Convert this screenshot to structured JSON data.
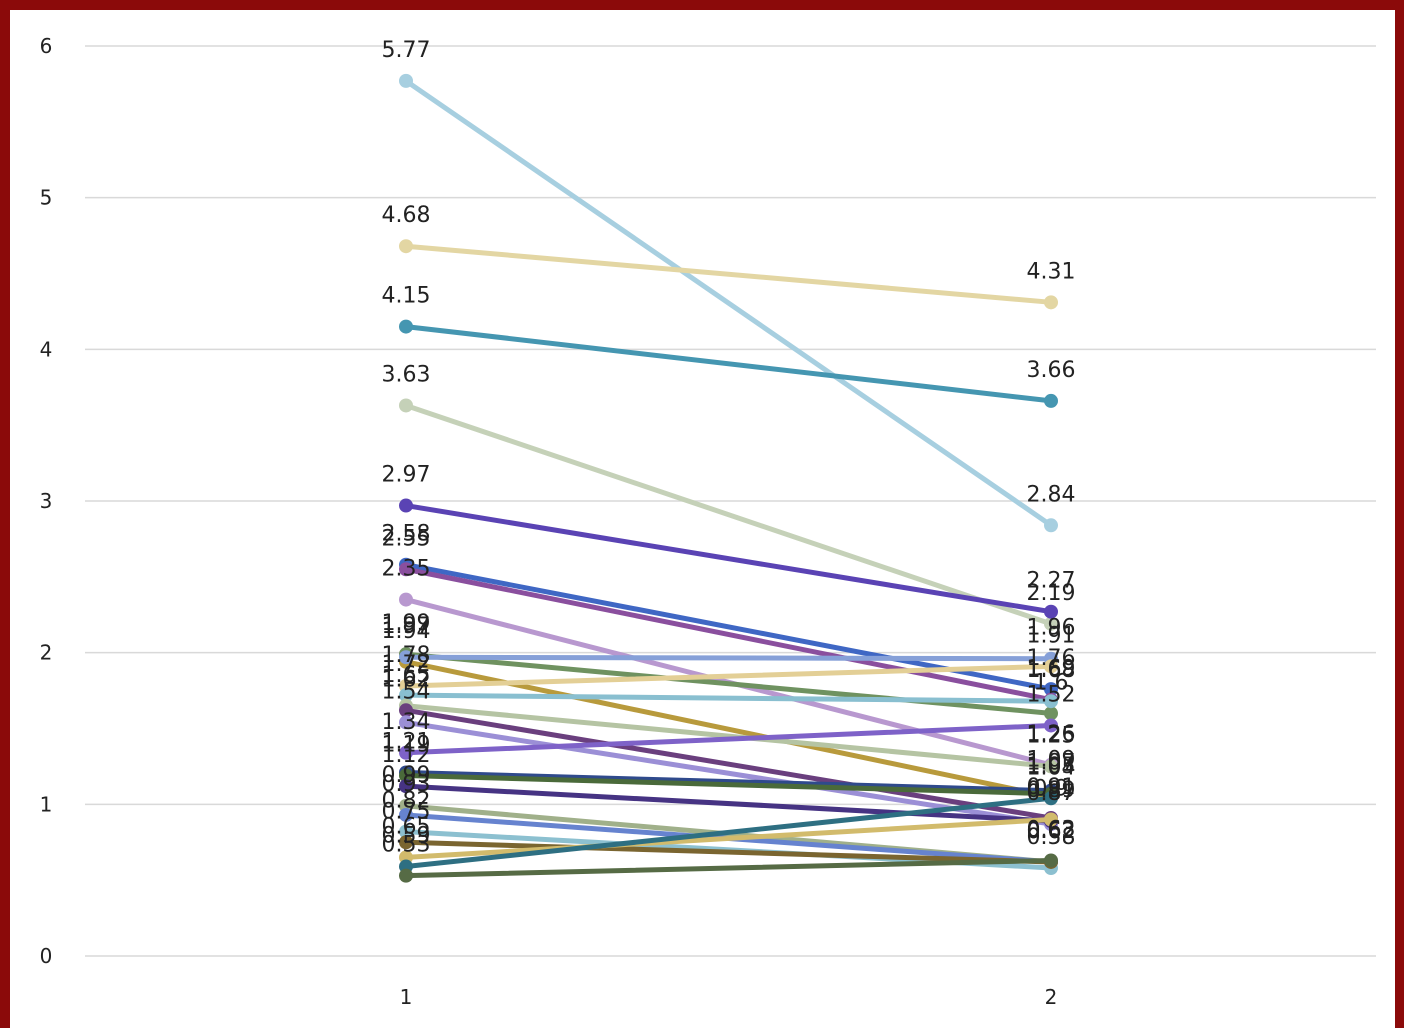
{
  "chart_data": {
    "type": "line",
    "title": "",
    "xlabel": "",
    "ylabel": "",
    "categories": [
      "1",
      "2"
    ],
    "ylim": [
      0,
      6
    ],
    "yticks": [
      "0",
      "1",
      "2",
      "3",
      "4",
      "5",
      "6"
    ],
    "grid": true,
    "legend": "none",
    "series": [
      {
        "values": [
          5.77,
          2.84
        ],
        "color": "#a7cfe0"
      },
      {
        "values": [
          4.68,
          4.31
        ],
        "color": "#e3d6a3"
      },
      {
        "values": [
          4.15,
          3.66
        ],
        "color": "#4596b1"
      },
      {
        "values": [
          3.63,
          2.19
        ],
        "color": "#c5d1b8"
      },
      {
        "values": [
          2.97,
          2.27
        ],
        "color": "#5a43b4"
      },
      {
        "values": [
          2.58,
          1.76
        ],
        "color": "#3f67c4"
      },
      {
        "values": [
          2.55,
          1.69
        ],
        "color": "#8a4f9e"
      },
      {
        "values": [
          2.35,
          1.26
        ],
        "color": "#b898cf"
      },
      {
        "values": [
          1.99,
          1.6
        ],
        "color": "#6f9260"
      },
      {
        "values": [
          1.94,
          1.05
        ],
        "color": "#b89a3c"
      },
      {
        "values": [
          1.97,
          1.96
        ],
        "color": "#86a0d8"
      },
      {
        "values": [
          1.78,
          1.91
        ],
        "color": "#e3cf96"
      },
      {
        "values": [
          1.72,
          1.68
        ],
        "color": "#89bfd0"
      },
      {
        "values": [
          1.65,
          1.25
        ],
        "color": "#b5c4a3"
      },
      {
        "values": [
          1.62,
          0.91
        ],
        "color": "#6a3f7e"
      },
      {
        "values": [
          1.54,
          0.87
        ],
        "color": "#9b8fd6"
      },
      {
        "values": [
          1.34,
          1.52
        ],
        "color": "#7e62c8"
      },
      {
        "values": [
          1.21,
          1.09
        ],
        "color": "#2f4a8c"
      },
      {
        "values": [
          1.19,
          1.07
        ],
        "color": "#4a6a3a"
      },
      {
        "values": [
          1.12,
          0.89
        ],
        "color": "#463383"
      },
      {
        "values": [
          0.99,
          0.62
        ],
        "color": "#a0b08a"
      },
      {
        "values": [
          0.93,
          0.62
        ],
        "color": "#6683cf"
      },
      {
        "values": [
          0.82,
          0.58
        ],
        "color": "#8cc0d0"
      },
      {
        "values": [
          0.75,
          0.62
        ],
        "color": "#7a6530"
      },
      {
        "values": [
          0.65,
          0.9
        ],
        "color": "#d2bb6c"
      },
      {
        "values": [
          0.59,
          1.04
        ],
        "color": "#2e6f82"
      },
      {
        "values": [
          0.53,
          0.63
        ],
        "color": "#566b45"
      }
    ]
  }
}
